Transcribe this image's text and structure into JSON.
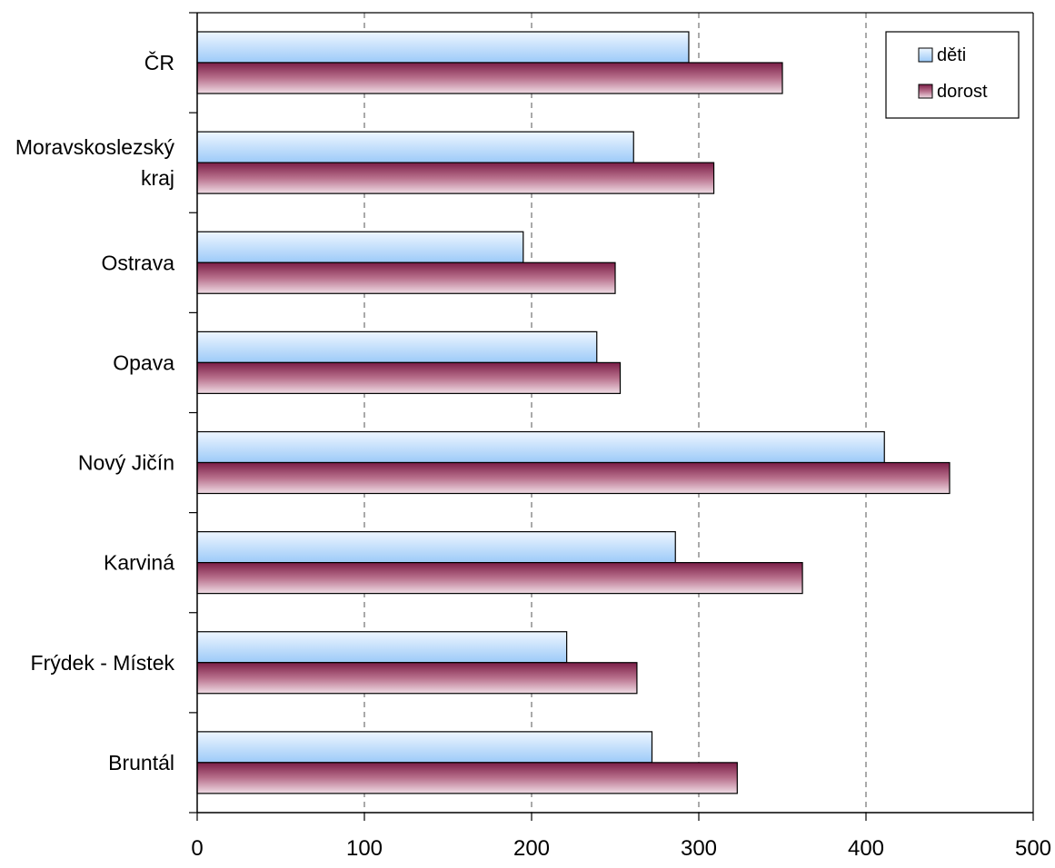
{
  "chart_data": {
    "type": "bar",
    "orientation": "horizontal",
    "categories": [
      [
        "ČR"
      ],
      [
        "Moravskoslezský",
        "kraj"
      ],
      [
        "Ostrava"
      ],
      [
        "Opava"
      ],
      [
        "Nový Jičín"
      ],
      [
        "Karviná"
      ],
      [
        "Frýdek - Místek"
      ],
      [
        "Bruntál"
      ]
    ],
    "series": [
      {
        "name": "děti",
        "values": [
          294,
          261,
          195,
          239,
          411,
          286,
          221,
          272
        ],
        "color": "#cfe6ff"
      },
      {
        "name": "dorost",
        "values": [
          350,
          309,
          250,
          253,
          450,
          362,
          263,
          323
        ],
        "color": "#b0607c"
      }
    ],
    "xlim": [
      0,
      500
    ],
    "xticks": [
      "0",
      "100",
      "200",
      "300",
      "400",
      "500"
    ],
    "xtick_values": [
      0,
      100,
      200,
      300,
      400,
      500
    ],
    "grid": "vertical dashed",
    "legend": "top-right",
    "title": "",
    "xlabel": "",
    "ylabel": ""
  }
}
